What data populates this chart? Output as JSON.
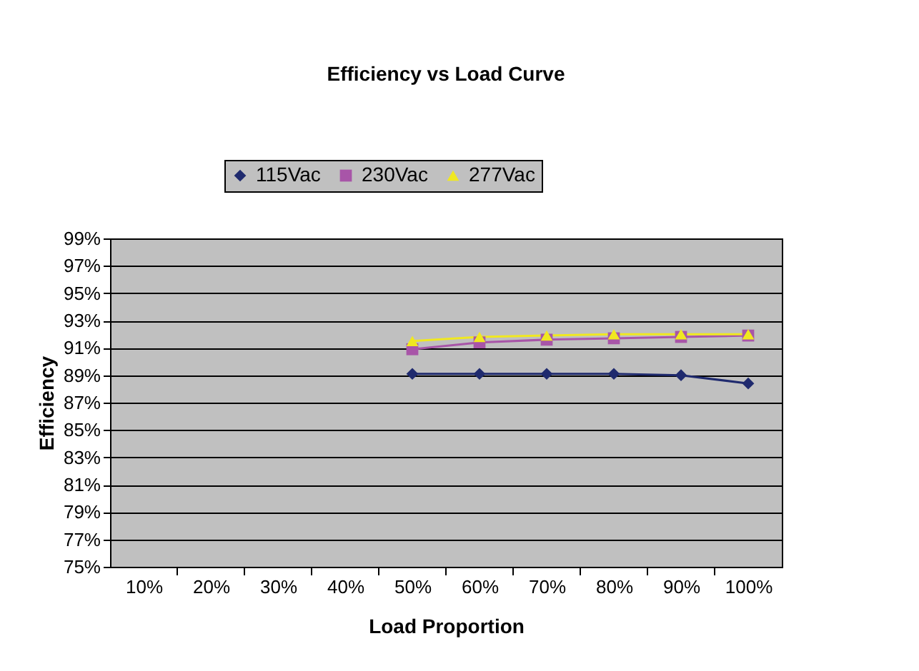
{
  "chart_data": {
    "type": "line",
    "title": "Efficiency vs Load Curve",
    "xlabel": "Load Proportion",
    "ylabel": "Efficiency",
    "categories": [
      "10%",
      "20%",
      "30%",
      "40%",
      "50%",
      "60%",
      "70%",
      "80%",
      "90%",
      "100%"
    ],
    "series": [
      {
        "name": "115Vac",
        "color": "#1f2a6e",
        "marker": "diamond",
        "values": [
          null,
          null,
          null,
          null,
          89.1,
          89.1,
          89.1,
          89.1,
          89.0,
          88.4
        ]
      },
      {
        "name": "230Vac",
        "color": "#a855a8",
        "marker": "square",
        "values": [
          null,
          null,
          null,
          null,
          90.9,
          91.4,
          91.6,
          91.7,
          91.8,
          91.9
        ]
      },
      {
        "name": "277Vac",
        "color": "#f0e820",
        "marker": "triangle",
        "values": [
          null,
          null,
          null,
          null,
          91.5,
          91.8,
          91.9,
          92.0,
          92.0,
          92.0
        ]
      }
    ],
    "ylim": [
      75,
      99
    ],
    "yticks": [
      {
        "value": 75,
        "label": "75%"
      },
      {
        "value": 77,
        "label": "77%"
      },
      {
        "value": 79,
        "label": "79%"
      },
      {
        "value": 81,
        "label": "81%"
      },
      {
        "value": 83,
        "label": "83%"
      },
      {
        "value": 85,
        "label": "85%"
      },
      {
        "value": 87,
        "label": "87%"
      },
      {
        "value": 89,
        "label": "89%"
      },
      {
        "value": 91,
        "label": "91%"
      },
      {
        "value": 93,
        "label": "93%"
      },
      {
        "value": 95,
        "label": "95%"
      },
      {
        "value": 97,
        "label": "97%"
      },
      {
        "value": 99,
        "label": "99%"
      }
    ],
    "grid": "y",
    "legend": "top",
    "line_style": "solid"
  }
}
